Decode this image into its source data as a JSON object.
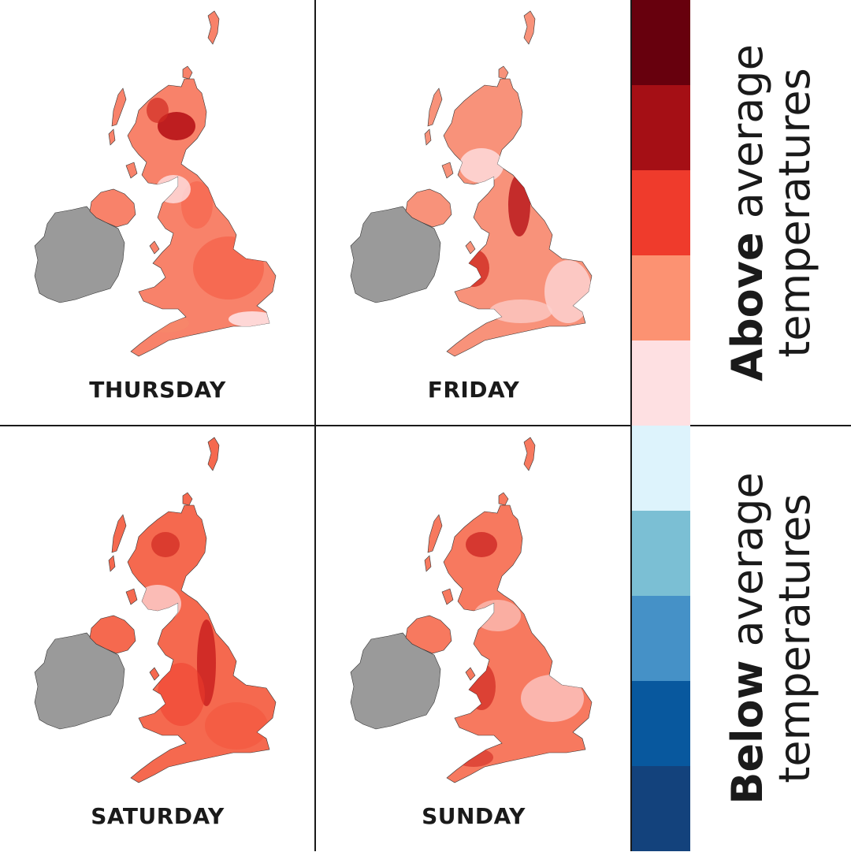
{
  "days": [
    "THURSDAY",
    "FRIDAY",
    "SATURDAY",
    "SUNDAY"
  ],
  "legend": {
    "above": {
      "bold": "Above",
      "rest": " average",
      "line2": "temperatures"
    },
    "below": {
      "bold": "Below",
      "rest": " average",
      "line2": "temperatures"
    },
    "scale_colors": [
      "#67000d",
      "#a50f15",
      "#ef3b2c",
      "#fc9272",
      "#fee0e2",
      "#ddf3fc",
      "#7bbfd4",
      "#4591c7",
      "#08589e",
      "#13427c"
    ]
  },
  "colors": {
    "ireland": "#9a9a9a",
    "coast": "#333333"
  }
}
